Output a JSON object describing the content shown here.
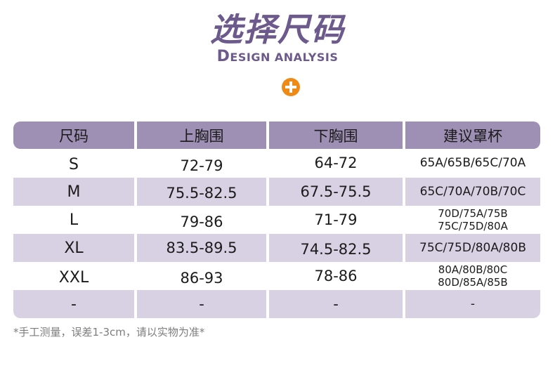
{
  "title": "选择尺码",
  "subtitle": {
    "first": "D",
    "rest": "ESIGN ANALYSIS"
  },
  "plus_icon": "plus-icon",
  "colors": {
    "accent": "#6d5a8c",
    "header_bg": "#9e8fb4",
    "row_bg": "#d8d1e3",
    "plus": "#f08a16"
  },
  "table": {
    "headers": [
      "尺码",
      "上胸围",
      "下胸围",
      "建议罩杯"
    ],
    "rows": [
      {
        "size": "S",
        "upper": "72-79",
        "lower": "64-72",
        "cup": [
          "65A/65B/65C/70A"
        ]
      },
      {
        "size": "M",
        "upper": "75.5-82.5",
        "lower": "67.5-75.5",
        "cup": [
          "65C/70A/70B/70C"
        ]
      },
      {
        "size": "L",
        "upper": "79-86",
        "lower": "71-79",
        "cup": [
          "70D/75A/75B",
          "75C/75D/80A"
        ]
      },
      {
        "size": "XL",
        "upper": "83.5-89.5",
        "lower": "74.5-82.5",
        "cup": [
          "75C/75D/80A/80B"
        ]
      },
      {
        "size": "XXL",
        "upper": "86-93",
        "lower": "78-86",
        "cup": [
          "80A/80B/80C",
          "80D/85A/85B"
        ]
      },
      {
        "size": "-",
        "upper": "-",
        "lower": "-",
        "cup": [
          "-"
        ]
      }
    ]
  },
  "note": "*手工测量，误差1-3cm，请以实物为准*"
}
